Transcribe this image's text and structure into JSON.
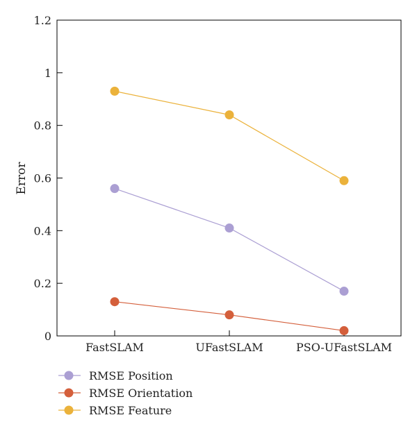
{
  "chart_data": {
    "type": "line",
    "categories": [
      "FastSLAM",
      "UFastSLAM",
      "PSO-UFastSLAM"
    ],
    "series": [
      {
        "name": "RMSE Position",
        "color": "#ab9fd3",
        "values": [
          0.56,
          0.41,
          0.17
        ]
      },
      {
        "name": "RMSE Orientation",
        "color": "#d45f3b",
        "values": [
          0.13,
          0.08,
          0.02
        ]
      },
      {
        "name": "RMSE Feature",
        "color": "#ebb23b",
        "values": [
          0.93,
          0.84,
          0.59
        ]
      }
    ],
    "ylabel": "Error",
    "ylim": [
      0,
      1.2
    ],
    "yticks": [
      "0",
      "0.2",
      "0.4",
      "0.6",
      "0.8",
      "1",
      "1.2"
    ],
    "grid": false,
    "legend_position": "bottom-left"
  }
}
